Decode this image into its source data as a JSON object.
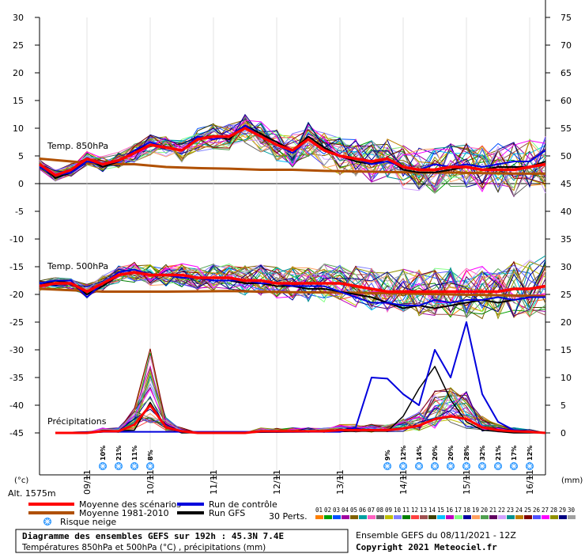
{
  "chart_data": {
    "type": "line",
    "left_axis": {
      "min": -45,
      "max": 30,
      "step": 5,
      "unit": "(°c)"
    },
    "right_axis": {
      "min": 0,
      "max": 75,
      "step": 5,
      "unit": "(mm)"
    },
    "x_axis": {
      "hours_max": 192,
      "ticks": [
        "09/11",
        "10/11",
        "11/11",
        "12/11",
        "13/11",
        "14/11",
        "15/11",
        "16/11"
      ]
    },
    "altitude": "Alt. 1575m",
    "labels": {
      "t850": "Temp. 850hPa",
      "t500": "Temp. 500hPa",
      "precip": "Précipitations"
    },
    "t850_mean": [
      [
        0,
        3.5
      ],
      [
        6,
        1.5
      ],
      [
        12,
        2.5
      ],
      [
        18,
        4.5
      ],
      [
        24,
        3.5
      ],
      [
        30,
        4.2
      ],
      [
        36,
        5.5
      ],
      [
        42,
        7
      ],
      [
        48,
        6.5
      ],
      [
        54,
        6
      ],
      [
        60,
        8
      ],
      [
        66,
        8.5
      ],
      [
        72,
        8.5
      ],
      [
        78,
        10
      ],
      [
        84,
        8.5
      ],
      [
        90,
        7
      ],
      [
        96,
        6
      ],
      [
        102,
        8
      ],
      [
        108,
        6
      ],
      [
        114,
        5
      ],
      [
        120,
        4.5
      ],
      [
        126,
        4
      ],
      [
        132,
        4.5
      ],
      [
        138,
        3
      ],
      [
        144,
        2.5
      ],
      [
        150,
        2.5
      ],
      [
        156,
        3
      ],
      [
        162,
        3
      ],
      [
        168,
        2.5
      ],
      [
        174,
        2.5
      ],
      [
        180,
        2.5
      ],
      [
        186,
        3
      ],
      [
        192,
        3.5
      ]
    ],
    "t850_clim": [
      [
        0,
        4.5
      ],
      [
        12,
        4
      ],
      [
        24,
        3.5
      ],
      [
        36,
        3.5
      ],
      [
        48,
        3
      ],
      [
        60,
        2.8
      ],
      [
        72,
        2.7
      ],
      [
        84,
        2.5
      ],
      [
        96,
        2.5
      ],
      [
        108,
        2.3
      ],
      [
        120,
        2.2
      ],
      [
        132,
        2.1
      ],
      [
        144,
        2
      ],
      [
        156,
        2
      ],
      [
        168,
        1.9
      ],
      [
        180,
        1.8
      ],
      [
        192,
        1.8
      ]
    ],
    "t850_control": [
      [
        0,
        3
      ],
      [
        6,
        1.5
      ],
      [
        12,
        2
      ],
      [
        18,
        4
      ],
      [
        24,
        3.5
      ],
      [
        30,
        4
      ],
      [
        36,
        6
      ],
      [
        42,
        7.5
      ],
      [
        48,
        6.5
      ],
      [
        54,
        6
      ],
      [
        60,
        8.5
      ],
      [
        66,
        8
      ],
      [
        72,
        8.5
      ],
      [
        78,
        10.5
      ],
      [
        84,
        8.5
      ],
      [
        90,
        7
      ],
      [
        96,
        5.5
      ],
      [
        102,
        8
      ],
      [
        108,
        6
      ],
      [
        114,
        5
      ],
      [
        120,
        4.5
      ],
      [
        126,
        3.5
      ],
      [
        132,
        4
      ],
      [
        138,
        3
      ],
      [
        144,
        2.5
      ],
      [
        150,
        3.5
      ],
      [
        156,
        3
      ],
      [
        162,
        3.5
      ],
      [
        168,
        3
      ],
      [
        174,
        3.5
      ],
      [
        180,
        4
      ],
      [
        186,
        4
      ],
      [
        192,
        6
      ]
    ],
    "t850_gfs": [
      [
        0,
        3.5
      ],
      [
        6,
        1
      ],
      [
        12,
        2
      ],
      [
        18,
        4.5
      ],
      [
        24,
        3
      ],
      [
        30,
        4
      ],
      [
        36,
        6
      ],
      [
        42,
        7
      ],
      [
        48,
        6.5
      ],
      [
        54,
        6
      ],
      [
        60,
        8
      ],
      [
        66,
        8.5
      ],
      [
        72,
        8
      ],
      [
        78,
        10.5
      ],
      [
        84,
        9
      ],
      [
        90,
        7.5
      ],
      [
        96,
        6
      ],
      [
        102,
        8.5
      ],
      [
        108,
        6.5
      ],
      [
        114,
        5
      ],
      [
        120,
        4
      ],
      [
        126,
        3.5
      ],
      [
        132,
        4.5
      ],
      [
        138,
        2.5
      ],
      [
        144,
        2
      ],
      [
        150,
        2
      ],
      [
        156,
        2.5
      ],
      [
        162,
        3
      ],
      [
        168,
        2.5
      ],
      [
        174,
        3
      ],
      [
        180,
        3
      ],
      [
        186,
        3
      ],
      [
        192,
        4
      ]
    ],
    "t500_mean": [
      [
        0,
        -18.5
      ],
      [
        6,
        -18
      ],
      [
        12,
        -18
      ],
      [
        18,
        -19.5
      ],
      [
        24,
        -18
      ],
      [
        30,
        -16.5
      ],
      [
        36,
        -16
      ],
      [
        42,
        -16.5
      ],
      [
        48,
        -16.5
      ],
      [
        54,
        -16.5
      ],
      [
        60,
        -17
      ],
      [
        66,
        -17
      ],
      [
        72,
        -17
      ],
      [
        78,
        -17.5
      ],
      [
        84,
        -17.5
      ],
      [
        90,
        -18
      ],
      [
        96,
        -18
      ],
      [
        102,
        -18
      ],
      [
        108,
        -18
      ],
      [
        114,
        -18
      ],
      [
        120,
        -18.5
      ],
      [
        126,
        -19
      ],
      [
        132,
        -19.5
      ],
      [
        138,
        -19.5
      ],
      [
        144,
        -19.5
      ],
      [
        150,
        -19.5
      ],
      [
        156,
        -19.5
      ],
      [
        162,
        -19.5
      ],
      [
        168,
        -19.5
      ],
      [
        174,
        -19.5
      ],
      [
        180,
        -19
      ],
      [
        186,
        -19
      ],
      [
        192,
        -18.5
      ]
    ],
    "t500_clim": [
      [
        0,
        -19
      ],
      [
        24,
        -19.5
      ],
      [
        48,
        -19.5
      ],
      [
        72,
        -19.4
      ],
      [
        96,
        -19.6
      ],
      [
        120,
        -19.7
      ],
      [
        144,
        -19.9
      ],
      [
        168,
        -20.1
      ],
      [
        192,
        -20.3
      ]
    ],
    "t500_control": [
      [
        0,
        -18
      ],
      [
        6,
        -17.5
      ],
      [
        12,
        -17.5
      ],
      [
        18,
        -20.5
      ],
      [
        24,
        -18
      ],
      [
        30,
        -16
      ],
      [
        36,
        -15.5
      ],
      [
        42,
        -16.5
      ],
      [
        48,
        -16.5
      ],
      [
        54,
        -17
      ],
      [
        60,
        -17
      ],
      [
        66,
        -17.5
      ],
      [
        72,
        -17.5
      ],
      [
        78,
        -17.5
      ],
      [
        84,
        -18
      ],
      [
        90,
        -18
      ],
      [
        96,
        -18.5
      ],
      [
        102,
        -18.5
      ],
      [
        108,
        -18.5
      ],
      [
        114,
        -19.5
      ],
      [
        120,
        -20.5
      ],
      [
        126,
        -21.5
      ],
      [
        132,
        -21.5
      ],
      [
        138,
        -22
      ],
      [
        144,
        -22
      ],
      [
        150,
        -21
      ],
      [
        156,
        -21.5
      ],
      [
        162,
        -21
      ],
      [
        168,
        -21
      ],
      [
        174,
        -20.5
      ],
      [
        180,
        -21
      ],
      [
        186,
        -20.5
      ],
      [
        192,
        -20.5
      ]
    ],
    "t500_gfs": [
      [
        0,
        -18.5
      ],
      [
        6,
        -17.5
      ],
      [
        12,
        -18
      ],
      [
        18,
        -20
      ],
      [
        24,
        -18.5
      ],
      [
        30,
        -16.5
      ],
      [
        36,
        -16
      ],
      [
        42,
        -16.5
      ],
      [
        48,
        -16.5
      ],
      [
        54,
        -17
      ],
      [
        60,
        -17
      ],
      [
        66,
        -17.5
      ],
      [
        72,
        -17.5
      ],
      [
        78,
        -18
      ],
      [
        84,
        -18
      ],
      [
        90,
        -18.5
      ],
      [
        96,
        -18.5
      ],
      [
        102,
        -19
      ],
      [
        108,
        -19
      ],
      [
        114,
        -19.5
      ],
      [
        120,
        -20
      ],
      [
        126,
        -20.5
      ],
      [
        132,
        -21.5
      ],
      [
        138,
        -22.5
      ],
      [
        144,
        -22
      ],
      [
        150,
        -22.5
      ],
      [
        156,
        -22
      ],
      [
        162,
        -21.5
      ],
      [
        168,
        -21
      ],
      [
        174,
        -21.5
      ],
      [
        180,
        -21
      ],
      [
        186,
        -20.5
      ],
      [
        192,
        -20.5
      ]
    ],
    "precip_mean": [
      [
        6,
        0
      ],
      [
        12,
        0
      ],
      [
        18,
        0
      ],
      [
        24,
        0.3
      ],
      [
        30,
        0.3
      ],
      [
        36,
        1.5
      ],
      [
        42,
        5
      ],
      [
        48,
        1
      ],
      [
        54,
        0.3
      ],
      [
        60,
        0
      ],
      [
        66,
        0
      ],
      [
        72,
        0
      ],
      [
        78,
        0
      ],
      [
        84,
        0.3
      ],
      [
        90,
        0.3
      ],
      [
        96,
        0.3
      ],
      [
        102,
        0.3
      ],
      [
        108,
        0.3
      ],
      [
        114,
        0.5
      ],
      [
        120,
        0.5
      ],
      [
        126,
        0.5
      ],
      [
        132,
        0.5
      ],
      [
        138,
        0.8
      ],
      [
        144,
        1.3
      ],
      [
        150,
        2.5
      ],
      [
        156,
        3
      ],
      [
        162,
        2.5
      ],
      [
        168,
        1
      ],
      [
        174,
        0.5
      ],
      [
        180,
        0.3
      ],
      [
        186,
        0.2
      ],
      [
        192,
        0
      ]
    ],
    "precip_control": [
      [
        6,
        0
      ],
      [
        24,
        0.2
      ],
      [
        114,
        0.2
      ],
      [
        120,
        1
      ],
      [
        126,
        10
      ],
      [
        132,
        9.8
      ],
      [
        138,
        7
      ],
      [
        144,
        5
      ],
      [
        150,
        15
      ],
      [
        156,
        10
      ],
      [
        162,
        20
      ],
      [
        168,
        7
      ],
      [
        174,
        2
      ],
      [
        180,
        0.5
      ],
      [
        192,
        0
      ]
    ],
    "precip_gfs": [
      [
        6,
        0
      ],
      [
        24,
        0.3
      ],
      [
        36,
        0.5
      ],
      [
        42,
        5.5
      ],
      [
        48,
        1
      ],
      [
        54,
        0
      ],
      [
        108,
        0.2
      ],
      [
        120,
        0.3
      ],
      [
        132,
        0.3
      ],
      [
        138,
        3
      ],
      [
        144,
        8
      ],
      [
        150,
        12
      ],
      [
        156,
        6
      ],
      [
        162,
        2
      ],
      [
        168,
        0.5
      ],
      [
        180,
        0
      ],
      [
        192,
        0
      ]
    ],
    "snow_risk": {
      "labels": [
        "10%",
        "21%",
        "11%",
        "8%",
        "9%",
        "12%",
        "14%",
        "20%",
        "20%",
        "28%",
        "32%",
        "21%",
        "17%",
        "12%"
      ],
      "hours": [
        24,
        30,
        36,
        42,
        132,
        138,
        144,
        150,
        156,
        162,
        168,
        174,
        180,
        186
      ]
    },
    "legend": {
      "mean": "Moyenne des scénarios",
      "clim": "Moyenne 1981-2010",
      "snow": "Risque neige",
      "control": "Run de contrôle",
      "gfs": "Run GFS",
      "perts": "30 Perts.",
      "pert_nums": [
        "01",
        "02",
        "03",
        "04",
        "05",
        "06",
        "07",
        "08",
        "09",
        "10",
        "11",
        "12",
        "13",
        "14",
        "15",
        "16",
        "17",
        "18",
        "19",
        "20",
        "21",
        "22",
        "23",
        "24",
        "25",
        "26",
        "27",
        "28",
        "29",
        "30"
      ]
    },
    "colors": {
      "mean": "#ff0000",
      "clim": "#b05000",
      "control": "#0000dd",
      "gfs": "#000000",
      "snow": "#1e90ff",
      "perts": [
        "#ff8000",
        "#00a000",
        "#0050ff",
        "#a000a0",
        "#806000",
        "#00a0a0",
        "#ff60c0",
        "#606060",
        "#c0c000",
        "#8080ff",
        "#008000",
        "#ff4040",
        "#a05050",
        "#404000",
        "#00c0ff",
        "#c000c0",
        "#80ff80",
        "#0000a0",
        "#ffa060",
        "#50a050",
        "#600060",
        "#d0a0ff",
        "#009090",
        "#c08000",
        "#800000",
        "#5050ff",
        "#ff00ff",
        "#909000",
        "#000080",
        "#a0a0a0"
      ]
    }
  },
  "footer": {
    "title": "Diagramme des ensembles GEFS sur 192h : 45.3N 7.4E",
    "subtitle": "Températures 850hPa et 500hPa (°C) , précipitations (mm)",
    "run_info": "Ensemble GEFS du 08/11/2021 - 12Z",
    "copyright": "Copyright 2021 Meteociel.fr"
  }
}
